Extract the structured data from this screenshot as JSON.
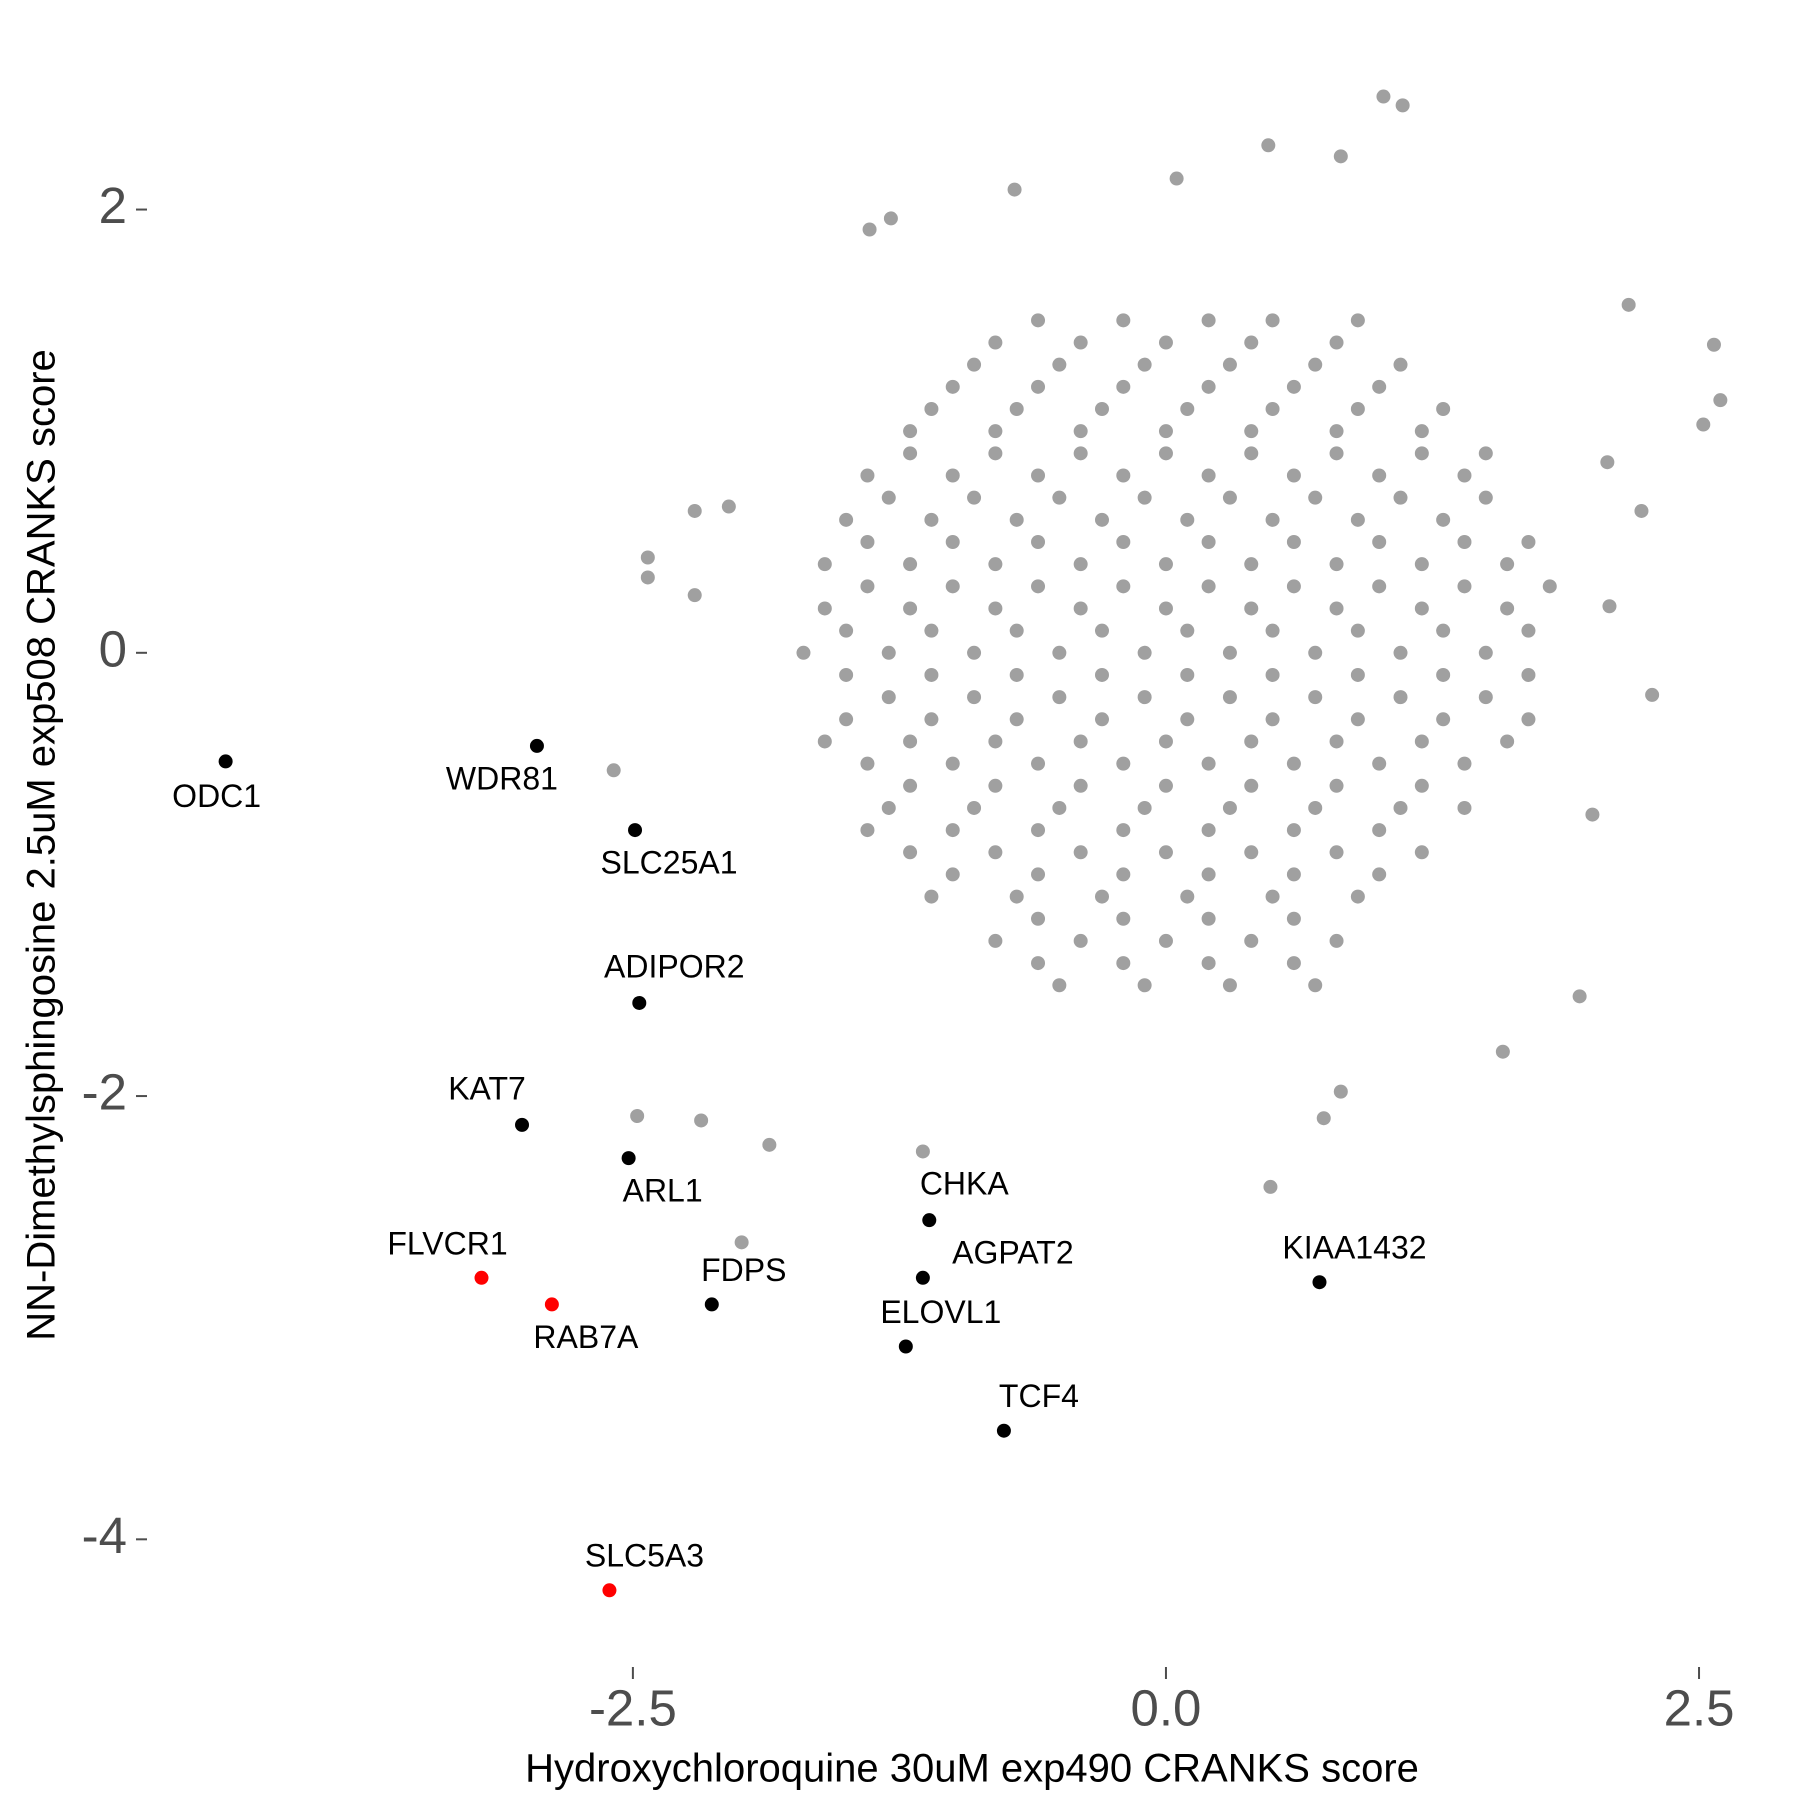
{
  "chart_data": {
    "type": "scatter",
    "x_label": "Hydroxychloroquine 30uM exp490 CRANKS score",
    "y_label": "NN-Dimethylsphingosine 2.5uM exp508 CRANKS score",
    "xlim": [
      -4.76,
      2.8
    ],
    "ylim": [
      -4.54,
      2.58
    ],
    "xticks": [
      -2.5,
      {
        "value": 0,
        "label": "0.0"
      },
      2.5
    ],
    "yticks": [
      -4,
      -2,
      0,
      2
    ],
    "grid": false,
    "series": [
      {
        "color": "#a0a0a0",
        "x": [
          1.02,
          1.11,
          0.48,
          0.82,
          0.05,
          -0.71,
          -1.29,
          -1.39,
          2.57,
          2.6,
          2.52,
          2.17,
          2.28,
          2.08,
          1.94,
          0.49,
          1.58,
          -2.21,
          -2.05,
          -2.43,
          -2.43,
          -2.21,
          -2.59,
          -1.99,
          -1.86,
          -2.18,
          -2.48,
          -1.14,
          0.74,
          0.82,
          2.0,
          2.23,
          2.07,
          -0.6,
          -0.2,
          0.2,
          0.5,
          0.9,
          -0.8,
          -0.4,
          0,
          0.4,
          0.8,
          -0.9,
          -0.5,
          -0.1,
          0.3,
          0.7,
          1.1,
          -1.0,
          -0.6,
          -0.2,
          0.2,
          0.6,
          1.0,
          -1.1,
          -0.7,
          -0.3,
          0.1,
          0.5,
          0.9,
          1.3,
          -1.2,
          -0.8,
          -0.4,
          0,
          0.4,
          0.8,
          1.2,
          -1.2,
          -0.8,
          -0.4,
          0,
          0.4,
          0.8,
          1.2,
          1.5,
          -1.4,
          -1.0,
          -0.6,
          -0.2,
          0.2,
          0.6,
          1.0,
          1.4,
          -1.3,
          -0.9,
          -0.5,
          -0.1,
          0.3,
          0.7,
          1.1,
          1.5,
          -1.5,
          -1.1,
          -0.7,
          -0.3,
          0.1,
          0.5,
          0.9,
          1.3,
          -1.4,
          -1.0,
          -0.6,
          -0.2,
          0.2,
          0.6,
          1.0,
          1.4,
          1.7,
          -1.6,
          -1.2,
          -0.8,
          -0.4,
          0,
          0.4,
          0.8,
          1.2,
          1.6,
          -1.4,
          -1.0,
          -0.6,
          -0.2,
          0.2,
          0.6,
          1.0,
          1.4,
          1.8,
          -1.6,
          -1.2,
          -0.8,
          -0.4,
          0,
          0.4,
          0.8,
          1.2,
          1.6,
          -1.5,
          -1.1,
          -0.7,
          -0.3,
          0.1,
          0.5,
          0.9,
          1.3,
          1.7,
          -1.7,
          -1.3,
          -0.9,
          -0.5,
          -0.1,
          0.3,
          0.7,
          1.1,
          1.5,
          -1.5,
          -1.1,
          -0.7,
          -0.3,
          0.1,
          0.5,
          0.9,
          1.3,
          1.7,
          -1.3,
          -0.9,
          -0.5,
          -0.1,
          0.3,
          0.7,
          1.1,
          1.5,
          -1.5,
          -1.1,
          -0.7,
          -0.3,
          0.1,
          0.5,
          0.9,
          1.3,
          1.7,
          -1.6,
          -1.2,
          -0.8,
          -0.4,
          0,
          0.4,
          0.8,
          1.2,
          1.6,
          -1.4,
          -1.0,
          -0.6,
          -0.2,
          0.2,
          0.6,
          1.0,
          1.4,
          -1.2,
          -0.8,
          -0.4,
          0,
          0.4,
          0.8,
          1.2,
          -1.3,
          -0.9,
          -0.5,
          -0.1,
          0.3,
          0.7,
          1.1,
          1.4,
          -1.4,
          -1.0,
          -0.6,
          -0.2,
          0.2,
          0.6,
          1.0,
          -1.2,
          -0.8,
          -0.4,
          0,
          0.4,
          0.8,
          1.2,
          -1.0,
          -0.6,
          -0.2,
          0.2,
          0.6,
          1.0,
          -1.1,
          -0.7,
          -0.3,
          0.1,
          0.5,
          0.9,
          -0.6,
          -0.2,
          0.2,
          0.6,
          -0.8,
          -0.4,
          0,
          0.4,
          0.8,
          -0.6,
          -0.2,
          0.2,
          0.6,
          -0.5,
          -0.1,
          0.3,
          0.7
        ],
        "values": [
          2.51,
          2.47,
          2.29,
          2.24,
          2.14,
          2.09,
          1.96,
          1.91,
          1.39,
          1.14,
          1.03,
          1.57,
          -0.19,
          0.21,
          -1.55,
          -2.41,
          -1.8,
          0.64,
          0.66,
          0.43,
          0.34,
          0.26,
          -0.53,
          -2.66,
          -2.22,
          -2.11,
          -2.09,
          -2.25,
          -2.1,
          -1.98,
          -0.73,
          0.64,
          0.86,
          1.5,
          1.5,
          1.5,
          1.5,
          1.5,
          1.4,
          1.4,
          1.4,
          1.4,
          1.4,
          1.3,
          1.3,
          1.3,
          1.3,
          1.3,
          1.3,
          1.2,
          1.2,
          1.2,
          1.2,
          1.2,
          1.2,
          1.1,
          1.1,
          1.1,
          1.1,
          1.1,
          1.1,
          1.1,
          1.0,
          1.0,
          1.0,
          1.0,
          1.0,
          1.0,
          1.0,
          0.9,
          0.9,
          0.9,
          0.9,
          0.9,
          0.9,
          0.9,
          0.9,
          0.8,
          0.8,
          0.8,
          0.8,
          0.8,
          0.8,
          0.8,
          0.8,
          0.7,
          0.7,
          0.7,
          0.7,
          0.7,
          0.7,
          0.7,
          0.7,
          0.6,
          0.6,
          0.6,
          0.6,
          0.6,
          0.6,
          0.6,
          0.6,
          0.5,
          0.5,
          0.5,
          0.5,
          0.5,
          0.5,
          0.5,
          0.5,
          0.5,
          0.4,
          0.4,
          0.4,
          0.4,
          0.4,
          0.4,
          0.4,
          0.4,
          0.4,
          0.3,
          0.3,
          0.3,
          0.3,
          0.3,
          0.3,
          0.3,
          0.3,
          0.3,
          0.2,
          0.2,
          0.2,
          0.2,
          0.2,
          0.2,
          0.2,
          0.2,
          0.2,
          0.1,
          0.1,
          0.1,
          0.1,
          0.1,
          0.1,
          0.1,
          0.1,
          0.1,
          0,
          0,
          0,
          0,
          0,
          0,
          0,
          0,
          0,
          -0.1,
          -0.1,
          -0.1,
          -0.1,
          -0.1,
          -0.1,
          -0.1,
          -0.1,
          -0.1,
          -0.2,
          -0.2,
          -0.2,
          -0.2,
          -0.2,
          -0.2,
          -0.2,
          -0.2,
          -0.3,
          -0.3,
          -0.3,
          -0.3,
          -0.3,
          -0.3,
          -0.3,
          -0.3,
          -0.3,
          -0.4,
          -0.4,
          -0.4,
          -0.4,
          -0.4,
          -0.4,
          -0.4,
          -0.4,
          -0.4,
          -0.5,
          -0.5,
          -0.5,
          -0.5,
          -0.5,
          -0.5,
          -0.5,
          -0.5,
          -0.6,
          -0.6,
          -0.6,
          -0.6,
          -0.6,
          -0.6,
          -0.6,
          -0.7,
          -0.7,
          -0.7,
          -0.7,
          -0.7,
          -0.7,
          -0.7,
          -0.7,
          -0.8,
          -0.8,
          -0.8,
          -0.8,
          -0.8,
          -0.8,
          -0.8,
          -0.9,
          -0.9,
          -0.9,
          -0.9,
          -0.9,
          -0.9,
          -0.9,
          -1.0,
          -1.0,
          -1.0,
          -1.0,
          -1.0,
          -1.0,
          -1.1,
          -1.1,
          -1.1,
          -1.1,
          -1.1,
          -1.1,
          -1.2,
          -1.2,
          -1.2,
          -1.2,
          -1.3,
          -1.3,
          -1.3,
          -1.3,
          -1.3,
          -1.4,
          -1.4,
          -1.4,
          -1.4,
          -1.5,
          -1.5,
          -1.5,
          -1.5
        ]
      },
      {
        "color": "#000000",
        "labels": [
          "ODC1",
          "WDR81",
          "SLC25A1",
          "ADIPOR2",
          "KAT7",
          "ARL1",
          "CHKA",
          "AGPAT2",
          "KIAA1432",
          "FDPS",
          "ELOVL1",
          "TCF4"
        ],
        "x": [
          -4.41,
          -2.95,
          -2.49,
          -2.47,
          -3.02,
          -2.52,
          -1.11,
          -1.14,
          0.72,
          -2.13,
          -1.22,
          -0.76
        ],
        "values": [
          -0.49,
          -0.42,
          -0.8,
          -1.58,
          -2.13,
          -2.28,
          -2.56,
          -2.82,
          -2.84,
          -2.94,
          -3.13,
          -3.51
        ]
      },
      {
        "color": "#ff0000",
        "labels": [
          "FLVCR1",
          "RAB7A",
          "SLC5A3"
        ],
        "x": [
          -3.21,
          -2.88,
          -2.61
        ],
        "values": [
          -2.82,
          -2.94,
          -4.23
        ]
      }
    ]
  }
}
